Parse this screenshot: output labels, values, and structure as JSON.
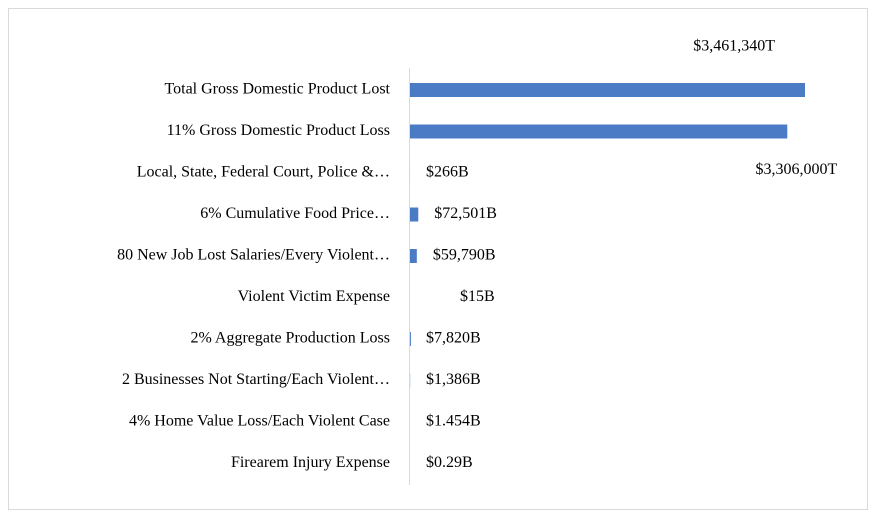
{
  "chart_data": {
    "type": "bar",
    "orientation": "horizontal",
    "color": "#4a7bc4",
    "categories": [
      "Total Gross Domestic Product Lost",
      "11% Gross Domestic Product Loss",
      "Local, State, Federal Court, Police &…",
      "6% Cumulative Food Price…",
      "80 New Job Lost Salaries/Every Violent…",
      "Violent Victim Expense",
      "2% Aggregate Production Loss",
      "2 Businesses Not Starting/Each Violent…",
      "4% Home Value Loss/Each Violent Case",
      "Firearem Injury Expense"
    ],
    "values": [
      3461340,
      3306000,
      266,
      72501,
      59790,
      15,
      7820,
      1386,
      1.454,
      0.29
    ],
    "value_labels": [
      "$3,461,340T",
      "$3,306,000T",
      "$266B",
      "$72,501B",
      "$59,790B",
      "$15B",
      "$7,820B",
      "$1,386B",
      "$1.454B",
      "$0.29B"
    ]
  }
}
